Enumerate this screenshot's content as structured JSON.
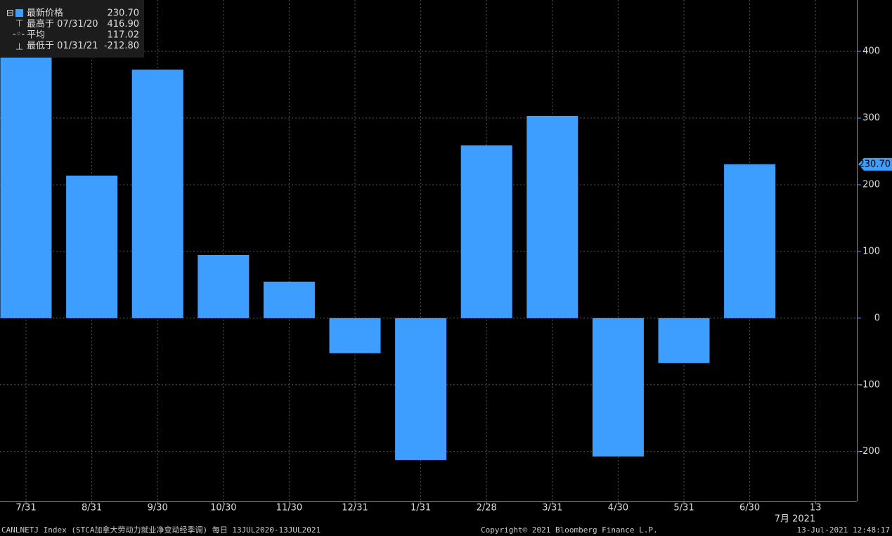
{
  "chart_data": {
    "type": "bar",
    "categories": [
      "7/31",
      "8/31",
      "9/30",
      "10/30",
      "11/30",
      "12/31",
      "1/31",
      "2/28",
      "3/31",
      "4/30",
      "5/31",
      "6/30",
      "13"
    ],
    "x_sublabel": "7月 2021",
    "values": [
      416.9,
      213.7,
      372.6,
      94.7,
      54.7,
      -52.6,
      -212.8,
      259.0,
      303.2,
      -207.4,
      -67.4,
      230.7,
      null
    ],
    "color": "#3d9eff",
    "ylim": [
      -274,
      477
    ],
    "yticks": [
      -200,
      -100,
      0,
      100,
      200,
      300,
      400
    ],
    "grid": true,
    "last_price": {
      "value": 230.7,
      "label": "230.70"
    },
    "legend": {
      "labels": [
        "最新价格",
        "最高于 07/31/20",
        "平均",
        "最低于 01/31/21"
      ],
      "values": [
        230.7,
        416.9,
        117.02,
        -212.8
      ],
      "value_labels": [
        "230.70",
        "416.90",
        "117.02",
        "-212.80"
      ]
    },
    "footer": {
      "left": "CANLNETJ Index (STCA加拿大劳动力就业净变动经季调) 每日 13JUL2020-13JUL2021",
      "center": "Copyright© 2021 Bloomberg Finance L.P.",
      "right": "13-Jul-2021 12:48:17"
    }
  }
}
